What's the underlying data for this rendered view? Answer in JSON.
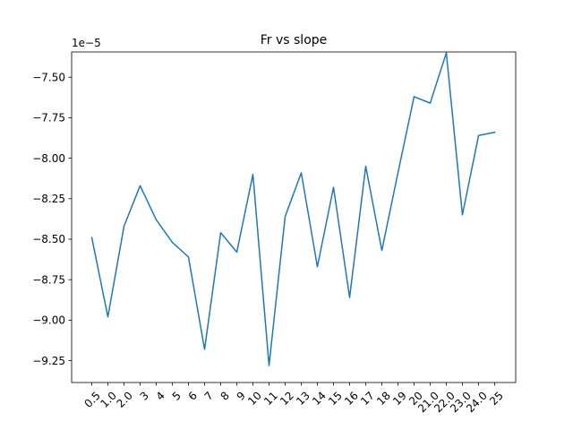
{
  "chart_data": {
    "type": "line",
    "title": "Fr vs slope",
    "xlabel": "",
    "ylabel": "",
    "offset_label": "1e−5",
    "categories": [
      "0.5",
      "1.0",
      "2.0",
      "3",
      "4",
      "5",
      "6",
      "7",
      "8",
      "9",
      "10",
      "11",
      "12",
      "13",
      "14",
      "15",
      "16",
      "17",
      "18",
      "19",
      "20",
      "21.0",
      "22.0",
      "23.0",
      "24.0",
      "25"
    ],
    "series": [
      {
        "values": [
          -8.49,
          -8.98,
          -8.42,
          -8.17,
          -8.38,
          -8.52,
          -8.61,
          -9.18,
          -8.46,
          -8.58,
          -8.1,
          -9.28,
          -8.36,
          -8.09,
          -8.67,
          -8.18,
          -8.86,
          -8.05,
          -8.57,
          -8.09,
          -7.62,
          -7.66,
          -7.35,
          -8.35,
          -7.86,
          -7.84
        ],
        "color": "#1f77b4"
      }
    ],
    "ylim": [
      -9.385,
      -7.344
    ],
    "yticks": [
      -9.25,
      -9.0,
      -8.75,
      -8.5,
      -8.25,
      -8.0,
      -7.75,
      -7.5
    ],
    "ytick_labels": [
      "−9.25",
      "−9.00",
      "−8.75",
      "−8.50",
      "−8.25",
      "−8.00",
      "−7.75",
      "−7.50"
    ],
    "grid": false,
    "legend": "none"
  }
}
